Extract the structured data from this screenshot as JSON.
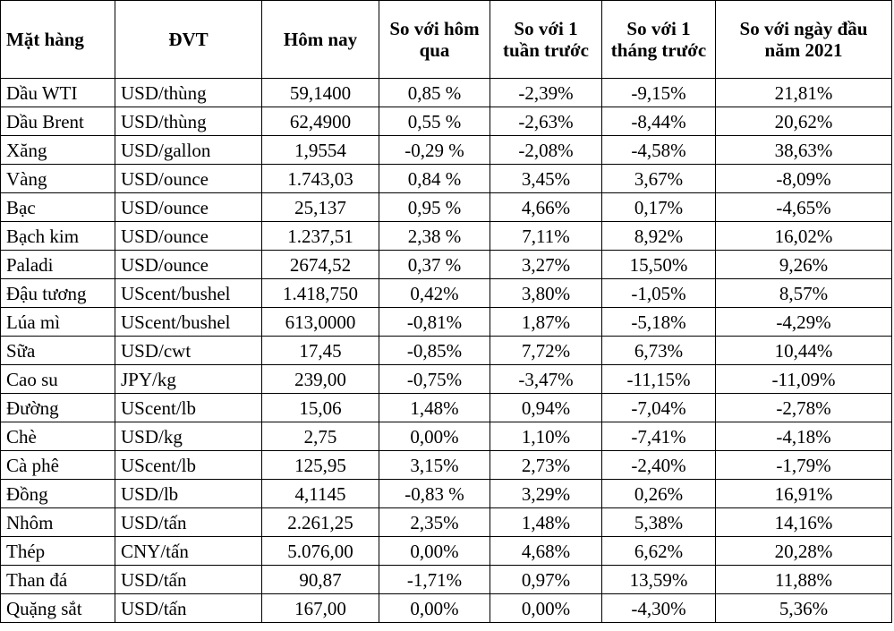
{
  "headers": [
    "Mặt hàng",
    "ĐVT",
    "Hôm nay",
    "So với hôm qua",
    "So với 1 tuần trước",
    "So với 1 tháng trước",
    "So với ngày đầu năm 2021"
  ],
  "rows": [
    [
      "Dầu WTI",
      "USD/thùng",
      "59,1400",
      "0,85 %",
      "-2,39%",
      "-9,15%",
      "21,81%"
    ],
    [
      "Dầu Brent",
      "USD/thùng",
      "62,4900",
      "0,55 %",
      "-2,63%",
      "-8,44%",
      "20,62%"
    ],
    [
      "Xăng",
      "USD/gallon",
      "1,9554",
      "-0,29 %",
      "-2,08%",
      "-4,58%",
      "38,63%"
    ],
    [
      "Vàng",
      "USD/ounce",
      "1.743,03",
      "0,84 %",
      "3,45%",
      "3,67%",
      "-8,09%"
    ],
    [
      "Bạc",
      "USD/ounce",
      "25,137",
      "0,95 %",
      "4,66%",
      "0,17%",
      "-4,65%"
    ],
    [
      "Bạch kim",
      "USD/ounce",
      "1.237,51",
      "2,38 %",
      "7,11%",
      "8,92%",
      "16,02%"
    ],
    [
      "Paladi",
      "USD/ounce",
      "2674,52",
      "0,37 %",
      "3,27%",
      "15,50%",
      "9,26%"
    ],
    [
      "Đậu tương",
      "UScent/bushel",
      "1.418,750",
      "0,42%",
      "3,80%",
      "-1,05%",
      "8,57%"
    ],
    [
      "Lúa mì",
      "UScent/bushel",
      "613,0000",
      "-0,81%",
      "1,87%",
      "-5,18%",
      "-4,29%"
    ],
    [
      "Sữa",
      "USD/cwt",
      "17,45",
      "-0,85%",
      "7,72%",
      "6,73%",
      "10,44%"
    ],
    [
      "Cao su",
      "JPY/kg",
      "239,00",
      "-0,75%",
      "-3,47%",
      "-11,15%",
      "-11,09%"
    ],
    [
      "Đường",
      "UScent/lb",
      "15,06",
      "1,48%",
      "0,94%",
      "-7,04%",
      "-2,78%"
    ],
    [
      "Chè",
      "USD/kg",
      "2,75",
      "0,00%",
      "1,10%",
      "-7,41%",
      "-4,18%"
    ],
    [
      "Cà phê",
      "UScent/lb",
      "125,95",
      "3,15%",
      "2,73%",
      "-2,40%",
      "-1,79%"
    ],
    [
      "Đồng",
      "USD/lb",
      "4,1145",
      "-0,83 %",
      "3,29%",
      "0,26%",
      "16,91%"
    ],
    [
      "Nhôm",
      "USD/tấn",
      "2.261,25",
      "2,35%",
      "1,48%",
      "5,38%",
      "14,16%"
    ],
    [
      "Thép",
      "CNY/tấn",
      "5.076,00",
      "0,00%",
      "4,68%",
      "6,62%",
      "20,28%"
    ],
    [
      "Than đá",
      "USD/tấn",
      "90,87",
      "-1,71%",
      "0,97%",
      "13,59%",
      "11,88%"
    ],
    [
      "Quặng sắt",
      "USD/tấn",
      "167,00",
      "0,00%",
      "0,00%",
      "-4,30%",
      "5,36%"
    ]
  ]
}
